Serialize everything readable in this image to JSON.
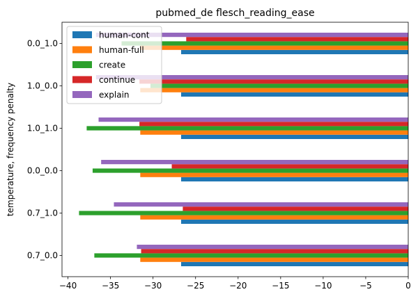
{
  "chart_data": {
    "type": "bar",
    "orientation": "horizontal",
    "title": "pubmed_de flesch_reading_ease",
    "xlabel": "",
    "ylabel": "temperature, frequency penalty",
    "categories": [
      "0.7_0.0",
      "0.7_1.0",
      "0.0_0.0",
      "1.0_1.0",
      "1.0_0.0",
      "0.0_1.0"
    ],
    "xlim": [
      -40.7,
      0
    ],
    "xticks": [
      -40,
      -35,
      -30,
      -25,
      -20,
      -15,
      -10,
      -5,
      0
    ],
    "grid": false,
    "legend_position": "top-left",
    "series": [
      {
        "name": "human-cont",
        "color": "#1f77b4",
        "values": [
          -26.7,
          -26.7,
          -26.7,
          -26.7,
          -26.7,
          -26.7
        ]
      },
      {
        "name": "human-full",
        "color": "#ff7f0e",
        "values": [
          -31.5,
          -31.5,
          -31.5,
          -31.5,
          -31.5,
          -31.5
        ]
      },
      {
        "name": "create",
        "color": "#2ca02c",
        "values": [
          -36.9,
          -38.7,
          -37.1,
          -37.8,
          -30.3,
          -33.7
        ]
      },
      {
        "name": "continue",
        "color": "#d62728",
        "values": [
          -31.4,
          -26.5,
          -27.8,
          -31.6,
          -31.6,
          -26.1
        ]
      },
      {
        "name": "explain",
        "color": "#9467bd",
        "values": [
          -31.9,
          -34.6,
          -36.1,
          -36.4,
          -36.7,
          -36.7
        ]
      }
    ]
  }
}
